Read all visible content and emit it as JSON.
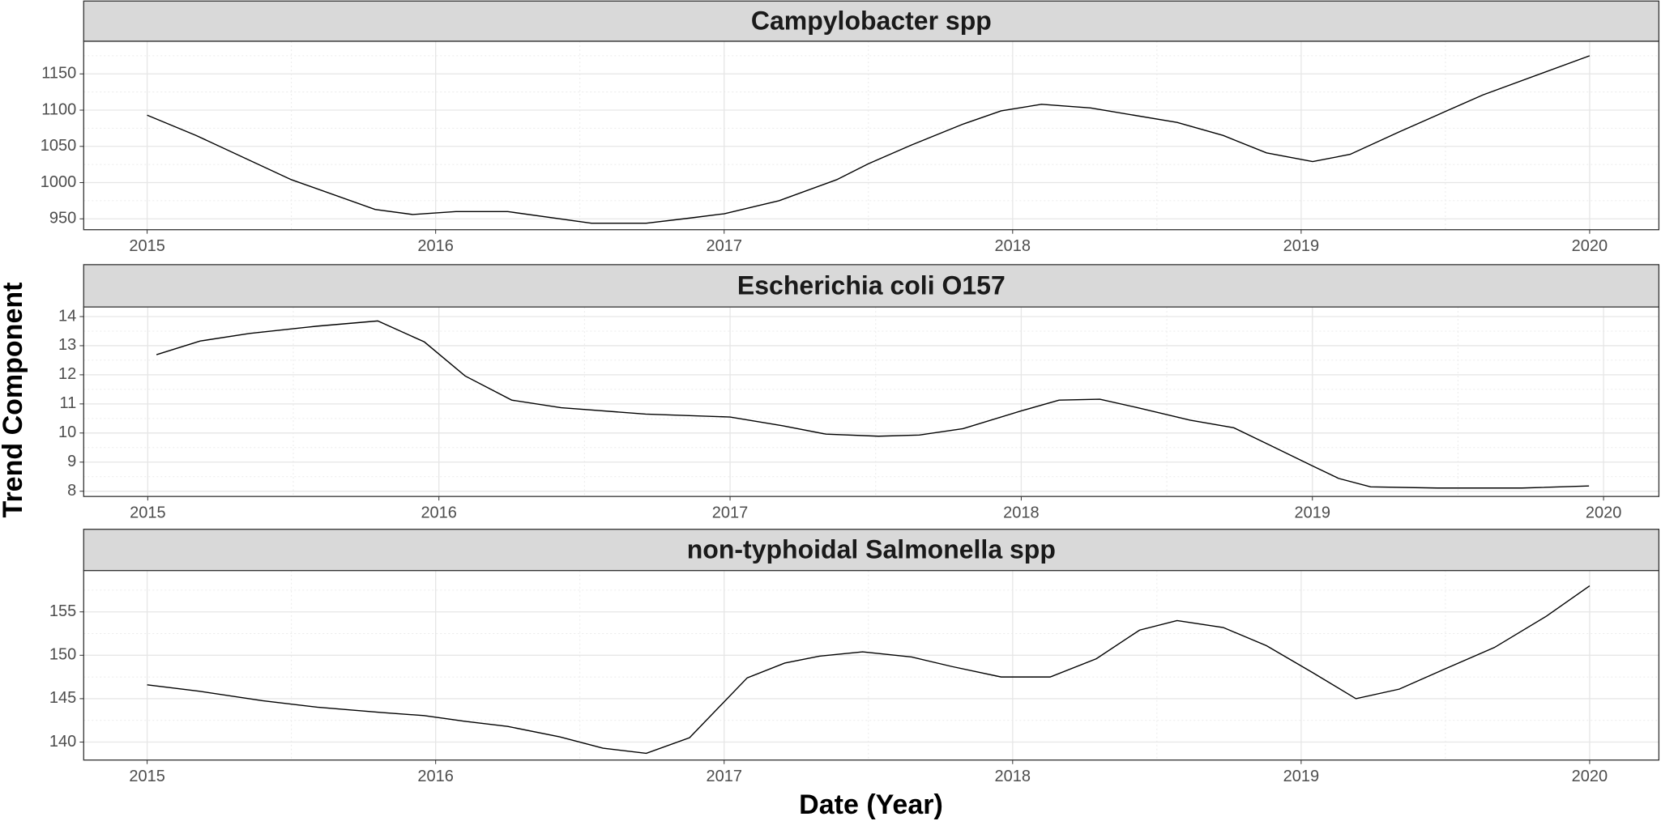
{
  "axis_labels": {
    "x": "Date (Year)",
    "y": "Trend Component"
  },
  "chart_data": [
    {
      "type": "line",
      "title": "Campylobacter spp",
      "color": "#000000",
      "grid": true,
      "xlim": [
        2014.78,
        2020.24
      ],
      "xticks": [
        2015,
        2016,
        2017,
        2018,
        2019,
        2020
      ],
      "ylim": [
        935,
        1195
      ],
      "yticks": [
        950,
        1000,
        1050,
        1100,
        1150
      ],
      "x": [
        2015.0,
        2015.17,
        2015.5,
        2015.79,
        2015.92,
        2016.07,
        2016.25,
        2016.54,
        2016.73,
        2016.88,
        2017.0,
        2017.19,
        2017.39,
        2017.5,
        2017.65,
        2017.83,
        2017.96,
        2018.1,
        2018.27,
        2018.57,
        2018.73,
        2018.88,
        2019.04,
        2019.17,
        2019.34,
        2019.63,
        2020.0
      ],
      "values": [
        1093,
        1065,
        1004,
        963,
        956,
        960,
        960,
        944,
        944,
        951,
        957,
        975,
        1004,
        1026,
        1052,
        1081,
        1099,
        1108,
        1103,
        1083,
        1065,
        1041,
        1029,
        1039,
        1070,
        1121,
        1175
      ]
    },
    {
      "type": "line",
      "title": "Escherichia coli O157",
      "color": "#000000",
      "grid": true,
      "xlim": [
        2014.78,
        2020.19
      ],
      "xticks": [
        2015,
        2016,
        2017,
        2018,
        2019,
        2020
      ],
      "ylim": [
        7.82,
        14.33
      ],
      "yticks": [
        8,
        9,
        10,
        11,
        12,
        13,
        14
      ],
      "x": [
        2015.03,
        2015.18,
        2015.35,
        2015.58,
        2015.79,
        2015.95,
        2016.09,
        2016.25,
        2016.42,
        2016.71,
        2017.0,
        2017.18,
        2017.33,
        2017.51,
        2017.65,
        2017.8,
        2018.0,
        2018.13,
        2018.27,
        2018.4,
        2018.58,
        2018.73,
        2018.85,
        2019.0,
        2019.09,
        2019.2,
        2019.43,
        2019.72,
        2019.95
      ],
      "values": [
        12.69,
        13.16,
        13.42,
        13.67,
        13.85,
        13.13,
        11.96,
        11.13,
        10.87,
        10.65,
        10.55,
        10.25,
        9.96,
        9.89,
        9.93,
        10.15,
        10.76,
        11.13,
        11.16,
        10.87,
        10.44,
        10.18,
        9.6,
        8.87,
        8.44,
        8.15,
        8.11,
        8.11,
        8.18
      ]
    },
    {
      "type": "line",
      "title": "non-typhoidal Salmonella spp",
      "color": "#000000",
      "grid": true,
      "xlim": [
        2014.78,
        2020.24
      ],
      "xticks": [
        2015,
        2016,
        2017,
        2018,
        2019,
        2020
      ],
      "ylim": [
        137.93,
        159.76
      ],
      "yticks": [
        140,
        145,
        150,
        155
      ],
      "x": [
        2015.0,
        2015.18,
        2015.4,
        2015.59,
        2015.81,
        2015.96,
        2016.1,
        2016.25,
        2016.43,
        2016.58,
        2016.73,
        2016.88,
        2017.08,
        2017.21,
        2017.33,
        2017.48,
        2017.65,
        2017.79,
        2017.96,
        2018.13,
        2018.29,
        2018.44,
        2018.57,
        2018.73,
        2018.88,
        2019.04,
        2019.19,
        2019.34,
        2019.49,
        2019.67,
        2019.85,
        2020.0
      ],
      "values": [
        146.6,
        145.86,
        144.76,
        144.02,
        143.41,
        143.05,
        142.4,
        141.8,
        140.6,
        139.3,
        138.7,
        140.5,
        147.4,
        149.1,
        149.9,
        150.4,
        149.8,
        148.7,
        147.5,
        147.5,
        149.6,
        152.9,
        154.0,
        153.2,
        151.1,
        148.0,
        145.0,
        146.1,
        148.3,
        150.9,
        154.5,
        158.0
      ]
    }
  ]
}
